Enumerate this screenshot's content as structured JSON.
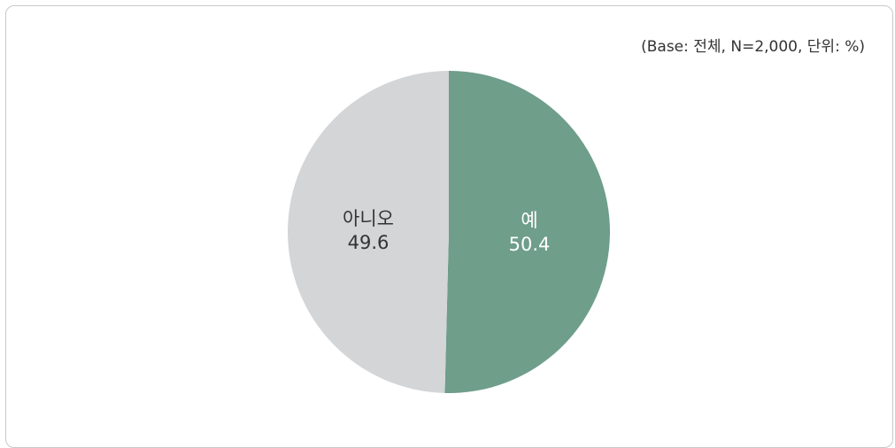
{
  "note": "(Base: 전체, N=2,000, 단위: %)",
  "chart_data": {
    "type": "pie",
    "slices": [
      {
        "label": "예",
        "value": 50.4,
        "color": "#6f9e8b",
        "text_color": "#ffffff"
      },
      {
        "label": "아니오",
        "value": 49.6,
        "color": "#d4d5d7",
        "text_color": "#333333"
      }
    ],
    "start_direction": "top",
    "direction": "clockwise"
  }
}
